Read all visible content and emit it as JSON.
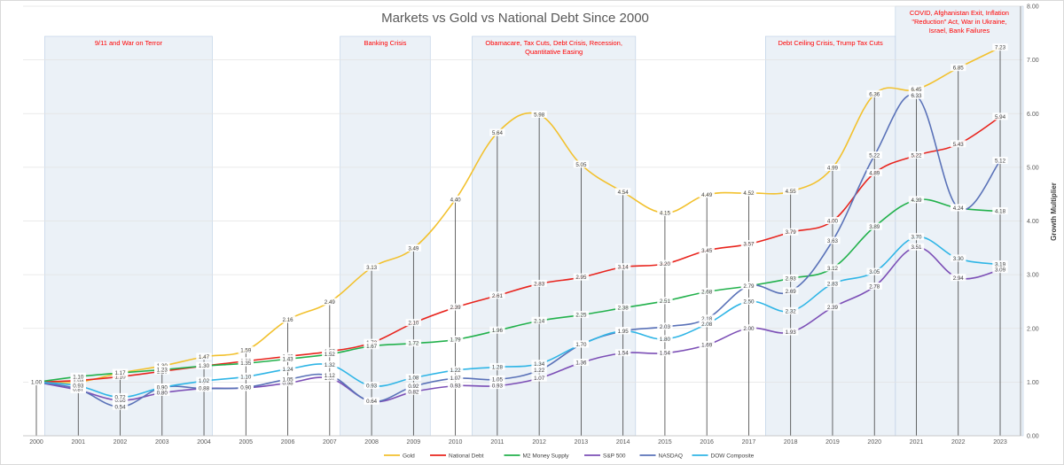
{
  "chart_data": {
    "type": "line",
    "title": "Markets vs Gold vs National Debt Since 2000",
    "xlabel": "",
    "ylabel": "Growth Multiplier",
    "ylim": [
      0,
      8
    ],
    "yticks": [
      "0.00",
      "1.00",
      "2.00",
      "3.00",
      "4.00",
      "5.00",
      "6.00",
      "7.00",
      "8.00"
    ],
    "y_axis_side": "right",
    "grid": true,
    "legend_position": "bottom",
    "categories": [
      "2000",
      "2001",
      "2002",
      "2003",
      "2004",
      "2005",
      "2006",
      "2007",
      "2008",
      "2009",
      "2010",
      "2011",
      "2012",
      "2013",
      "2014",
      "2015",
      "2016",
      "2017",
      "2018",
      "2019",
      "2020",
      "2021",
      "2022",
      "2023"
    ],
    "series": [
      {
        "name": "Gold",
        "color": "#f2c12e",
        "values": [
          1.0,
          1.0,
          1.17,
          1.3,
          1.47,
          1.59,
          2.16,
          2.49,
          3.13,
          3.49,
          4.4,
          5.64,
          5.98,
          5.05,
          4.54,
          4.15,
          4.49,
          4.52,
          4.55,
          4.99,
          6.36,
          6.45,
          6.85,
          7.23
        ]
      },
      {
        "name": "National Debt",
        "color": "#e8241d",
        "values": [
          1.0,
          1.03,
          1.1,
          1.2,
          1.3,
          1.39,
          1.48,
          1.57,
          1.73,
          2.1,
          2.39,
          2.61,
          2.83,
          2.95,
          3.14,
          3.2,
          3.45,
          3.57,
          3.79,
          4.0,
          4.89,
          5.22,
          5.43,
          5.94
        ]
      },
      {
        "name": "M2 Money Supply",
        "color": "#22b14c",
        "values": [
          1.0,
          1.1,
          1.17,
          1.23,
          1.3,
          1.35,
          1.43,
          1.52,
          1.67,
          1.72,
          1.79,
          1.96,
          2.14,
          2.25,
          2.38,
          2.51,
          2.68,
          2.79,
          2.93,
          3.12,
          3.89,
          4.39,
          4.24,
          4.18
        ]
      },
      {
        "name": "S&P 500",
        "color": "#7c4fb6",
        "values": [
          1.0,
          0.85,
          0.66,
          0.8,
          0.88,
          0.89,
          0.98,
          1.07,
          0.64,
          0.82,
          0.93,
          0.93,
          1.07,
          1.36,
          1.54,
          1.54,
          1.69,
          2.0,
          1.93,
          2.39,
          2.78,
          3.51,
          2.94,
          3.09
        ]
      },
      {
        "name": "NASDAQ",
        "color": "#5a72b8",
        "values": [
          1.0,
          0.87,
          0.54,
          0.9,
          0.88,
          0.9,
          1.05,
          1.12,
          0.64,
          0.92,
          1.07,
          1.05,
          1.22,
          1.7,
          1.95,
          2.03,
          2.18,
          2.79,
          2.69,
          3.63,
          5.22,
          6.33,
          4.24,
          5.12
        ]
      },
      {
        "name": "DOW Composite",
        "color": "#2fb5e6",
        "values": [
          1.0,
          0.93,
          0.72,
          0.9,
          1.02,
          1.1,
          1.24,
          1.32,
          0.93,
          1.08,
          1.22,
          1.28,
          1.34,
          1.7,
          1.95,
          1.8,
          2.08,
          2.5,
          2.32,
          2.83,
          3.05,
          3.7,
          3.3,
          3.19
        ]
      }
    ],
    "shaded_periods": [
      {
        "label": "9/11 and War on Terror",
        "start": 2000.2,
        "end": 2004.2
      },
      {
        "label": "Banking Crisis",
        "start": 2007.25,
        "end": 2009.4
      },
      {
        "label": "Obamacare, Tax Cuts, Debt Crisis, Recession, Quantitative Easing",
        "start": 2010.4,
        "end": 2014.3
      },
      {
        "label": "Debt Ceiling Crisis, Trump Tax Cuts",
        "start": 2017.4,
        "end": 2020.5
      },
      {
        "label": "COVID, Afghanistan Exit, Inflation \"Reduction\" Act, War in Ukraine, Israel, Bank Failures",
        "start": 2020.5,
        "end": 2023.55
      }
    ]
  }
}
